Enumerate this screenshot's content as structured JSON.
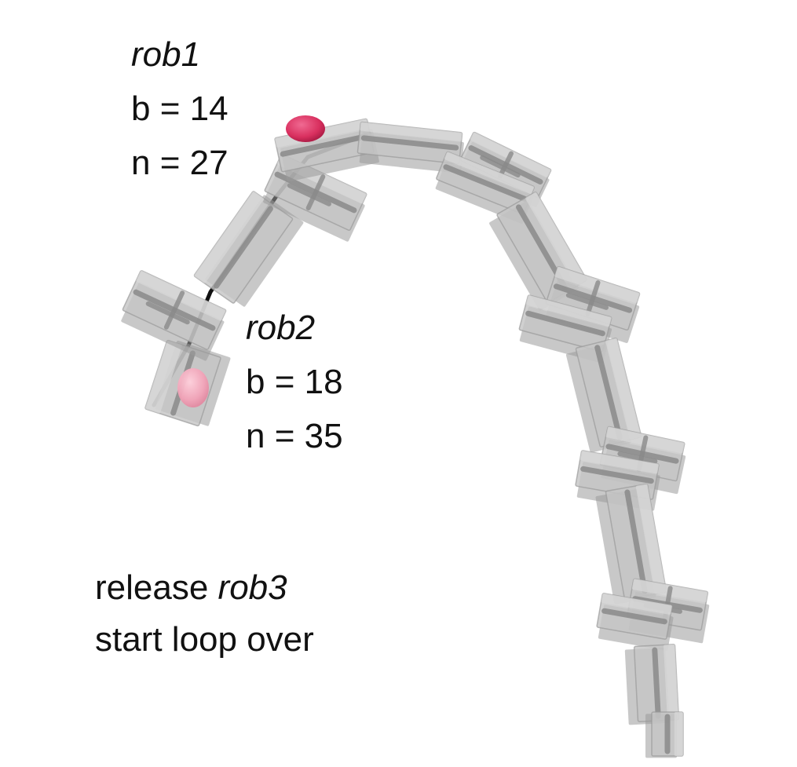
{
  "robots": [
    {
      "name": "rob1",
      "b_line": "b = 14",
      "n_line": "n = 27",
      "marker_color": "#d9305f"
    },
    {
      "name": "rob2",
      "b_line": "b = 18",
      "n_line": "n = 35",
      "marker_color": "#f2a3b8"
    }
  ],
  "instruction": {
    "line1_prefix": "release ",
    "line1_robot": "rob3",
    "line2": "start loop over"
  },
  "colors": {
    "block_fill": "#c6c6c6",
    "block_top": "#d8d8d8",
    "block_edge": "#9a9a9a",
    "spine": "#8a8a8a",
    "cable": "#111111"
  }
}
